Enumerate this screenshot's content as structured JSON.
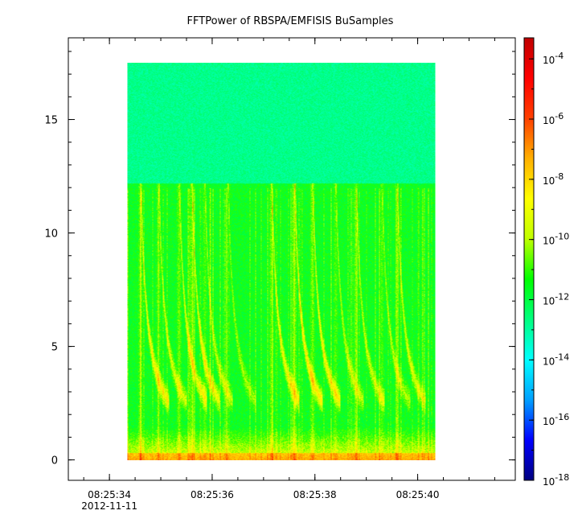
{
  "chart_data": {
    "type": "heatmap",
    "title": "FFTPower of RBSPA/EMFISIS  BuSamples",
    "xlabel": "",
    "ylabel": "",
    "xlim_seconds": [
      33.2,
      41.9
    ],
    "data_time_range_seconds": [
      34.35,
      40.35
    ],
    "x_ticks": [
      {
        "value": 34,
        "label": "08:25:34",
        "sublabel": "2012-11-11"
      },
      {
        "value": 36,
        "label": "08:25:36"
      },
      {
        "value": 38,
        "label": "08:25:38"
      },
      {
        "value": 40,
        "label": "08:25:40"
      }
    ],
    "x_minor_step": 0.5,
    "ylim": [
      -0.9,
      18.6
    ],
    "y_ticks": [
      0,
      5,
      10,
      15
    ],
    "y_minor_step": 1,
    "data_freq_max": 17.5,
    "band_edge_freq": 12.2,
    "colorbar": {
      "scale": "log",
      "range_exponent": [
        -18,
        -3.3
      ],
      "tick_exponents": [
        -18,
        -16,
        -14,
        -12,
        -10,
        -8,
        -6,
        -4
      ],
      "tick_base": "10",
      "colors": [
        "#00007f",
        "#0000ff",
        "#00a0ff",
        "#00ffff",
        "#00ff80",
        "#00ff00",
        "#c0ff00",
        "#ffff00",
        "#ffb000",
        "#ff4000",
        "#ff0000",
        "#c00000"
      ]
    },
    "bursts": [
      {
        "t": 34.6,
        "strength": 0.9
      },
      {
        "t": 34.95,
        "strength": 0.7
      },
      {
        "t": 35.35,
        "strength": 0.8
      },
      {
        "t": 35.6,
        "strength": 0.85
      },
      {
        "t": 35.85,
        "strength": 0.6
      },
      {
        "t": 36.3,
        "strength": 0.5
      },
      {
        "t": 37.15,
        "strength": 0.85
      },
      {
        "t": 37.6,
        "strength": 1.0
      },
      {
        "t": 37.95,
        "strength": 0.9
      },
      {
        "t": 38.4,
        "strength": 0.6
      },
      {
        "t": 38.8,
        "strength": 0.65
      },
      {
        "t": 39.3,
        "strength": 0.55
      },
      {
        "t": 39.6,
        "strength": 0.7
      }
    ]
  }
}
